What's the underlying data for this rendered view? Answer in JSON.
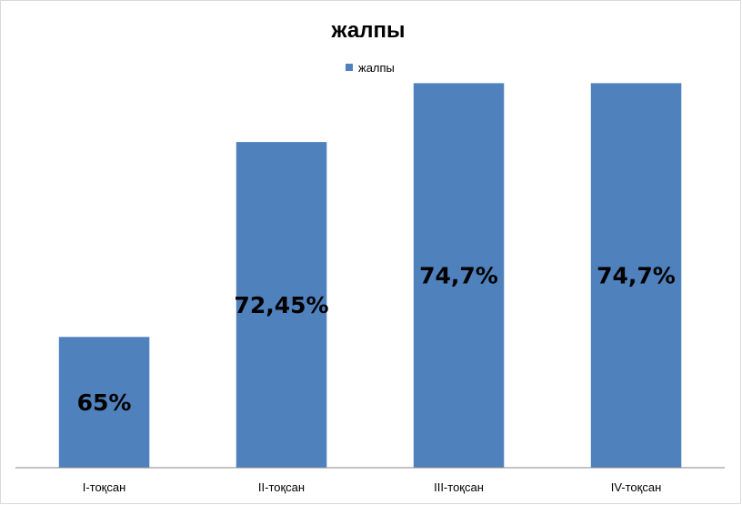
{
  "chart_data": {
    "type": "bar",
    "title": "жалпы",
    "categories": [
      "I-тоқсан",
      "II-тоқсан",
      "III-тоқсан",
      "IV-тоқсан"
    ],
    "series": [
      {
        "name": "жалпы",
        "values": [
          65,
          72.45,
          74.7,
          74.7
        ],
        "data_labels": [
          "65%",
          "72,45%",
          "74,7%",
          "74,7%"
        ],
        "color": "#4f81bd"
      }
    ],
    "xlabel": "",
    "ylabel": "",
    "ylim": [
      60,
      76
    ],
    "grid": false,
    "legend_position": "top-center"
  }
}
